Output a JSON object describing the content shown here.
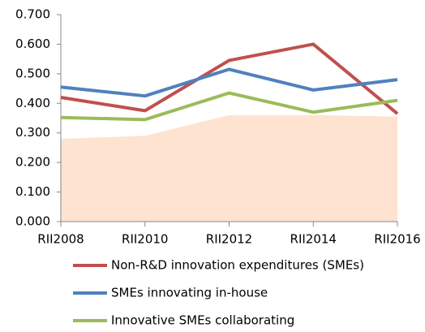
{
  "chart_data": {
    "type": "line",
    "categories": [
      "RII2008",
      "RII2010",
      "RII2012",
      "RII2014",
      "RII2016"
    ],
    "area": {
      "color": "#fde3d0",
      "values": [
        0.28,
        0.29,
        0.36,
        0.36,
        0.355
      ]
    },
    "series": [
      {
        "name": "Non-R&D innovation expenditures (SMEs)",
        "color": "#c0504d",
        "values": [
          0.42,
          0.375,
          0.545,
          0.6,
          0.365
        ]
      },
      {
        "name": "SMEs innovating in-house",
        "color": "#4f81bd",
        "values": [
          0.455,
          0.425,
          0.515,
          0.445,
          0.48
        ]
      },
      {
        "name": "Innovative SMEs collaborating",
        "color": "#9bbb59",
        "values": [
          0.352,
          0.345,
          0.435,
          0.37,
          0.41
        ]
      }
    ],
    "ylim": [
      0,
      0.7
    ],
    "yticks": [
      {
        "value": 0,
        "label": "0.000"
      },
      {
        "value": 0.1,
        "label": "0.100"
      },
      {
        "value": 0.2,
        "label": "0.200"
      },
      {
        "value": 0.3,
        "label": "0.300"
      },
      {
        "value": 0.4,
        "label": "0.400"
      },
      {
        "value": 0.5,
        "label": "0.500"
      },
      {
        "value": 0.6,
        "label": "0.600"
      },
      {
        "value": 0.7,
        "label": "0.700"
      }
    ],
    "grid": false
  }
}
